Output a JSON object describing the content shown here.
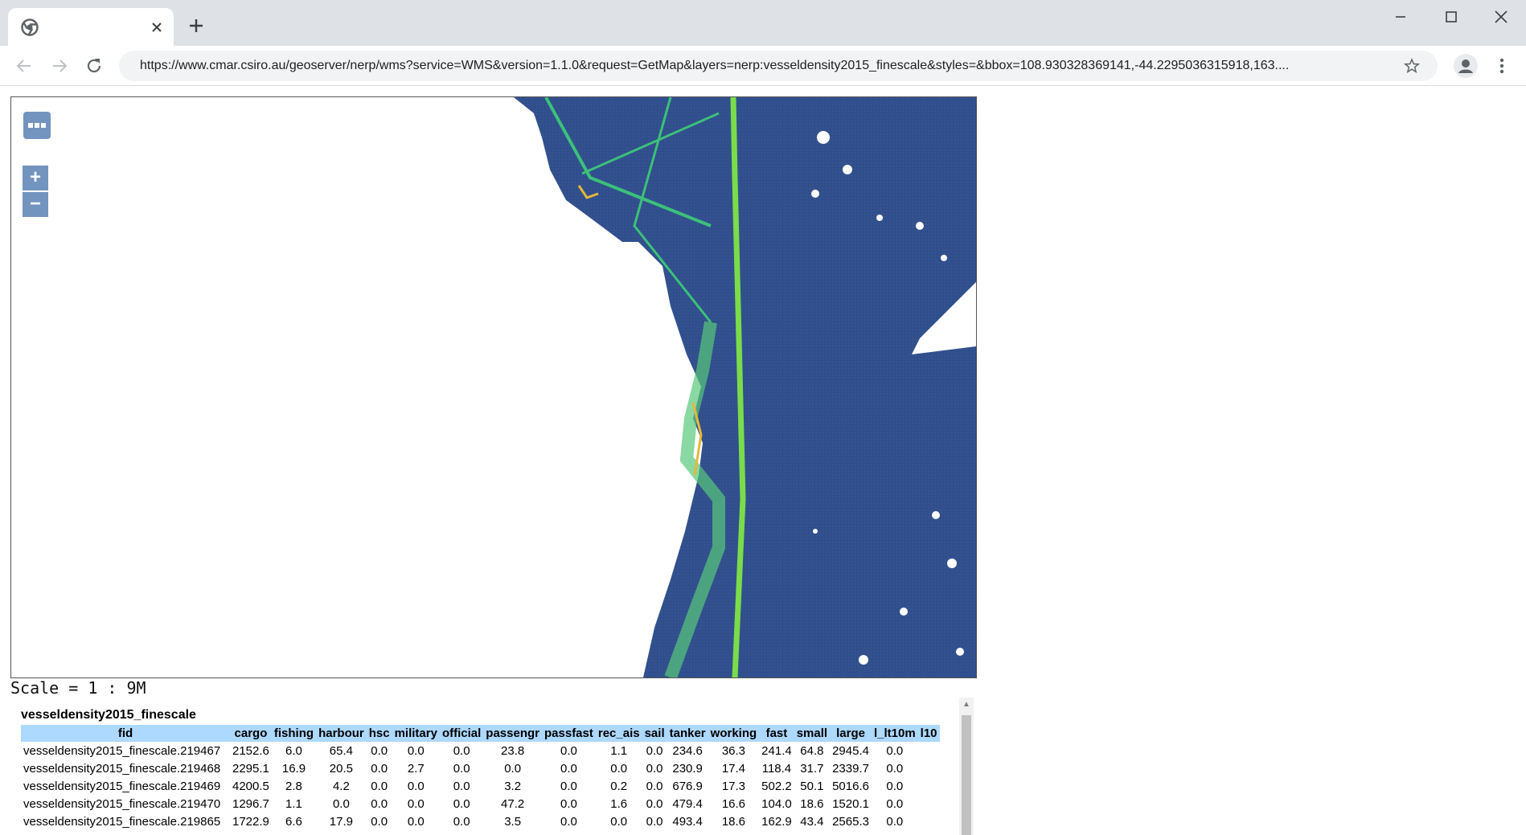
{
  "browser": {
    "tab_title": "",
    "close_tab_icon": "close-icon",
    "new_tab_icon": "plus-icon",
    "url": "https://www.cmar.csiro.au/geoserver/nerp/wms?service=WMS&version=1.1.0&request=GetMap&layers=nerp:vesseldensity2015_finescale&styles=&bbox=108.930328369141,-44.2295036315918,163...."
  },
  "map": {
    "layers_icon": "more-horizontal-icon",
    "zoom_in_label": "+",
    "zoom_out_label": "−",
    "land_color": "#ffffff",
    "sea_color": "#2e4d8a",
    "shipping_colors": [
      "#3cc07a",
      "#7bdc4a",
      "#e6b73a"
    ]
  },
  "scale_text": "Scale = 1 : 9M",
  "results": {
    "layer_name": "vesseldensity2015_finescale",
    "columns": [
      "fid",
      "cargo",
      "fishing",
      "harbour",
      "hsc",
      "military",
      "official",
      "passengr",
      "passfast",
      "rec_ais",
      "sail",
      "tanker",
      "working",
      "fast",
      "small",
      "large",
      "l_lt10m",
      "l10"
    ],
    "rows": [
      [
        "vesseldensity2015_finescale.219467",
        "2152.6",
        "6.0",
        "65.4",
        "0.0",
        "0.0",
        "0.0",
        "23.8",
        "0.0",
        "1.1",
        "0.0",
        "234.6",
        "36.3",
        "241.4",
        "64.8",
        "2945.4",
        "0.0",
        ""
      ],
      [
        "vesseldensity2015_finescale.219468",
        "2295.1",
        "16.9",
        "20.5",
        "0.0",
        "2.7",
        "0.0",
        "0.0",
        "0.0",
        "0.0",
        "0.0",
        "230.9",
        "17.4",
        "118.4",
        "31.7",
        "2339.7",
        "0.0",
        ""
      ],
      [
        "vesseldensity2015_finescale.219469",
        "4200.5",
        "2.8",
        "4.2",
        "0.0",
        "0.0",
        "0.0",
        "3.2",
        "0.0",
        "0.2",
        "0.0",
        "676.9",
        "17.3",
        "502.2",
        "50.1",
        "5016.6",
        "0.0",
        ""
      ],
      [
        "vesseldensity2015_finescale.219470",
        "1296.7",
        "1.1",
        "0.0",
        "0.0",
        "0.0",
        "0.0",
        "47.2",
        "0.0",
        "1.6",
        "0.0",
        "479.4",
        "16.6",
        "104.0",
        "18.6",
        "1520.1",
        "0.0",
        ""
      ],
      [
        "vesseldensity2015_finescale.219865",
        "1722.9",
        "6.6",
        "17.9",
        "0.0",
        "0.0",
        "0.0",
        "3.5",
        "0.0",
        "0.0",
        "0.0",
        "493.4",
        "18.6",
        "162.9",
        "43.4",
        "2565.3",
        "0.0",
        ""
      ]
    ]
  }
}
